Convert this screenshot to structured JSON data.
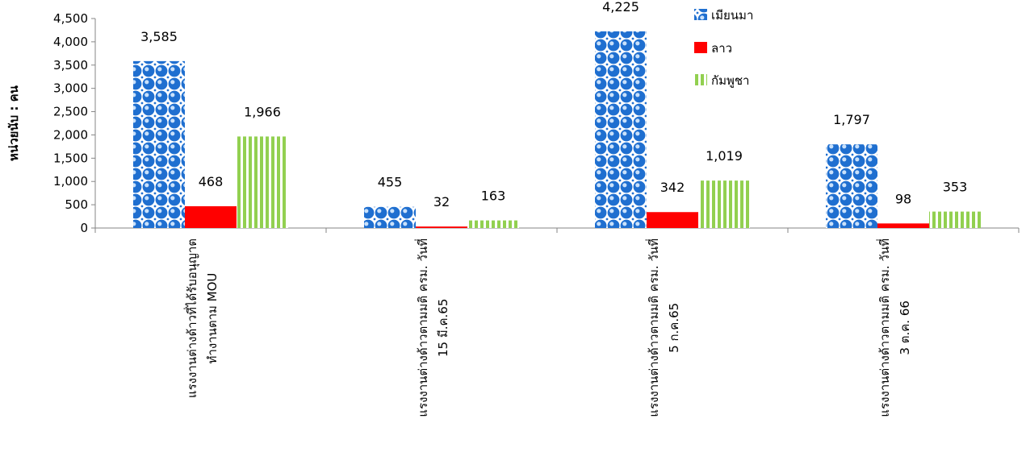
{
  "chart_data": {
    "type": "bar",
    "ylabel": "หน่วยนับ : คน",
    "ylim": [
      0,
      4500
    ],
    "yticks": [
      0,
      500,
      1000,
      1500,
      2000,
      2500,
      3000,
      3500,
      4000,
      4500
    ],
    "ytick_labels": [
      "0",
      "500",
      "1,000",
      "1,500",
      "2,000",
      "2,500",
      "3,000",
      "3,500",
      "4,000",
      "4,500"
    ],
    "grid": false,
    "legend_position": "top-right",
    "categories": [
      [
        "แรงงานต่างด้าวที่ได้รับอนุญาต",
        "ทำงานตาม MOU"
      ],
      [
        "แรงงานต่างด้าวตามมติ ครม. วันที่",
        "15 มี.ค.65"
      ],
      [
        "แรงงานต่างด้าวตามมติ ครม. วันที่",
        "5 ก.ค.65"
      ],
      [
        "แรงงานต่างด้าวตามมติ ครม. วันที่",
        "3 ต.ค. 66"
      ]
    ],
    "series": [
      {
        "name": "เมียนมา",
        "values": [
          3585,
          455,
          4225,
          1797
        ],
        "labels": [
          "3,585",
          "455",
          "4,225",
          "1,797"
        ],
        "color": "#1f6fd0",
        "pattern": "dots"
      },
      {
        "name": "ลาว",
        "values": [
          468,
          32,
          342,
          98
        ],
        "labels": [
          "468",
          "32",
          "342",
          "98"
        ],
        "color": "#ff0000",
        "pattern": "solid"
      },
      {
        "name": "กัมพูชา",
        "values": [
          1966,
          163,
          1019,
          353
        ],
        "labels": [
          "1,966",
          "163",
          "1,019",
          "353"
        ],
        "color": "#92d050",
        "pattern": "vstripes"
      }
    ]
  }
}
